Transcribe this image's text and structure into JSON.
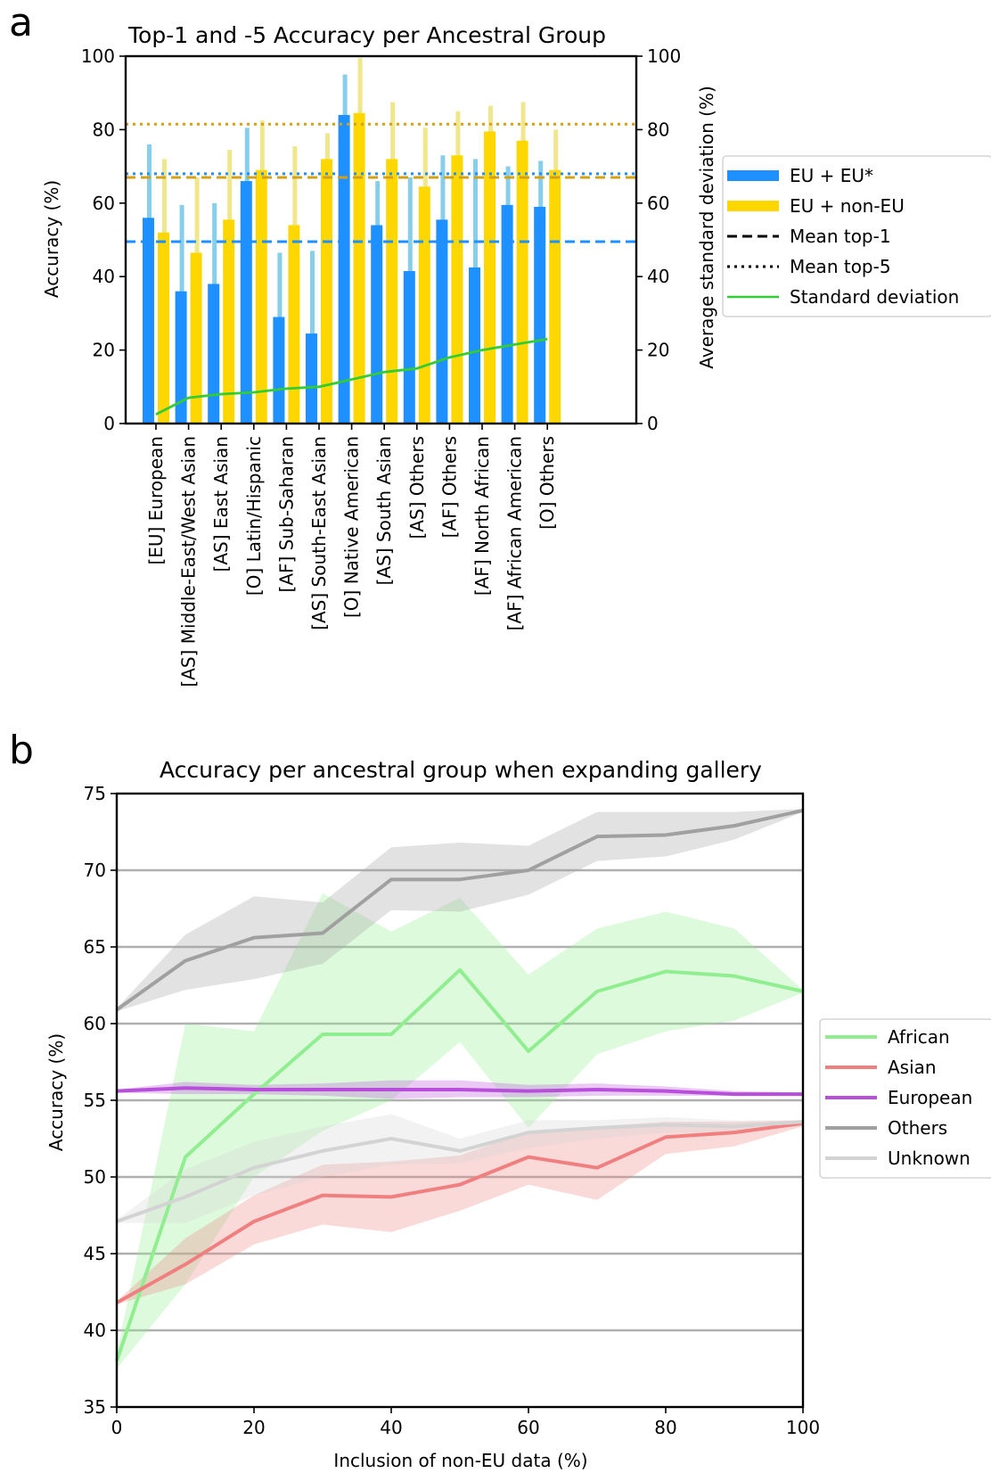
{
  "panel_a": {
    "letter": "a"
  },
  "panel_b": {
    "letter": "b"
  },
  "chart_data": [
    {
      "type": "bar",
      "title": "Top-1 and -5 Accuracy per Ancestral Group",
      "ylabel": "Accuracy (%)",
      "y2label": "Average standard deviation (%)",
      "ylim": [
        0,
        100
      ],
      "y2lim": [
        0,
        100
      ],
      "yticks": [
        0,
        20,
        40,
        60,
        80,
        100
      ],
      "categories": [
        "[EU] European",
        "[AS] Middle-East/West Asian",
        "[AS] East Asian",
        "[O] Latin/Hispanic",
        "[AF] Sub-Saharan",
        "[AS] South-East Asian",
        "[O] Native American",
        "[AS] South Asian",
        "[AS] Others",
        "[AF] Others",
        "[AF] North African",
        "[AF] African American",
        "[O] Others"
      ],
      "series": [
        {
          "name": "EU + EU*",
          "color": "#1e90ff",
          "top5_color": "#87ceeb",
          "top1": [
            56,
            36,
            38,
            66,
            29,
            24.5,
            84,
            54,
            41.5,
            55.5,
            42.5,
            59.5,
            59
          ],
          "top5": [
            76,
            59.5,
            60,
            80.5,
            46.5,
            47,
            95,
            66,
            67,
            73,
            72,
            70,
            71.5
          ]
        },
        {
          "name": "EU + non-EU",
          "color": "#ffd700",
          "top5_color": "#f0e68c",
          "top1": [
            52,
            46.5,
            55.5,
            69,
            54,
            72,
            84.5,
            72,
            64.5,
            73,
            79.5,
            77,
            69
          ],
          "top5": [
            72,
            67,
            74.5,
            82.5,
            75.5,
            79,
            99.5,
            87.5,
            80.5,
            85,
            86.5,
            87.5,
            80
          ]
        },
        {
          "name": "Standard deviation",
          "color": "#33cc33",
          "axis": "right",
          "values": [
            2.5,
            7,
            8,
            8.5,
            9.5,
            10,
            12,
            14,
            15,
            18,
            20,
            21.5,
            23
          ]
        }
      ],
      "mean_lines": {
        "eu_top1": 49.5,
        "eu_top5": 68,
        "noneu_top1": 67,
        "noneu_top5": 81.5
      },
      "legend": {
        "position": "right",
        "entries": [
          "EU + EU*",
          "EU + non-EU",
          "Mean top-1",
          "Mean top-5",
          "Standard deviation"
        ]
      }
    },
    {
      "type": "line",
      "title": "Accuracy per ancestral group when expanding gallery",
      "xlabel": "Inclusion of non-EU data (%)",
      "ylabel": "Accuracy (%)",
      "xlim": [
        0,
        100
      ],
      "ylim": [
        35,
        75
      ],
      "xticks": [
        0,
        20,
        40,
        60,
        80,
        100
      ],
      "yticks": [
        35,
        40,
        45,
        50,
        55,
        60,
        65,
        70,
        75
      ],
      "grid": "horizontal",
      "x": [
        0,
        10,
        20,
        30,
        40,
        50,
        60,
        70,
        80,
        90,
        100
      ],
      "series": [
        {
          "name": "African",
          "color": "#90ee90",
          "values": [
            38,
            51.3,
            55.4,
            59.3,
            59.3,
            63.5,
            58.2,
            62.1,
            63.4,
            63.1,
            62.1
          ],
          "lower": [
            37.5,
            43,
            50,
            53,
            55,
            58.8,
            53.2,
            58,
            59.5,
            60.2,
            62
          ],
          "upper": [
            38.5,
            60,
            59.5,
            68.5,
            66,
            68.2,
            63.2,
            66.2,
            67.3,
            66.2,
            62.2
          ]
        },
        {
          "name": "Asian",
          "color": "#f08080",
          "values": [
            41.8,
            44.3,
            47.1,
            48.8,
            48.7,
            49.5,
            51.3,
            50.6,
            52.6,
            52.9,
            53.5
          ],
          "lower": [
            41.7,
            43,
            45.6,
            46.9,
            46.4,
            47.8,
            49.5,
            48.5,
            51.5,
            52,
            53.3
          ],
          "upper": [
            41.9,
            46,
            48.8,
            50.8,
            51,
            51.4,
            53,
            53.3,
            53.6,
            53.6,
            53.7
          ]
        },
        {
          "name": "European",
          "color": "#b84fdb",
          "values": [
            55.6,
            55.8,
            55.7,
            55.7,
            55.7,
            55.7,
            55.6,
            55.7,
            55.6,
            55.4,
            55.4
          ],
          "lower": [
            55.5,
            55.4,
            55.4,
            55.3,
            55.1,
            55.2,
            55.2,
            55.3,
            55.3,
            55.3,
            55.4
          ],
          "upper": [
            55.7,
            56.2,
            56,
            56.1,
            56.3,
            56.3,
            56,
            56.1,
            55.9,
            55.6,
            55.5
          ]
        },
        {
          "name": "Others",
          "color": "#a0a0a0",
          "values": [
            60.9,
            64.1,
            65.6,
            65.9,
            69.4,
            69.4,
            70,
            72.2,
            72.3,
            72.9,
            73.9
          ],
          "lower": [
            60.8,
            62.2,
            62.9,
            63.9,
            67.4,
            67.3,
            68.4,
            70.6,
            70.9,
            72,
            73.8
          ],
          "upper": [
            61,
            65.8,
            68.3,
            67.9,
            71.5,
            71.8,
            71.6,
            73.8,
            73.8,
            73.8,
            74
          ]
        },
        {
          "name": "Unknown",
          "color": "#d3d3d3",
          "values": [
            47.1,
            48.7,
            50.6,
            51.7,
            52.5,
            51.7,
            52.9,
            53.2,
            53.4,
            53.3,
            53.6
          ],
          "lower": [
            47,
            47,
            48.8,
            50,
            50.8,
            50.9,
            51.9,
            52.5,
            52.9,
            52.9,
            53.5
          ],
          "upper": [
            47.2,
            50.5,
            52.3,
            53.3,
            54.1,
            52.5,
            53.7,
            53.7,
            53.9,
            53.7,
            53.7
          ]
        }
      ],
      "legend": {
        "position": "right",
        "entries": [
          "African",
          "Asian",
          "European",
          "Others",
          "Unknown"
        ]
      }
    }
  ]
}
